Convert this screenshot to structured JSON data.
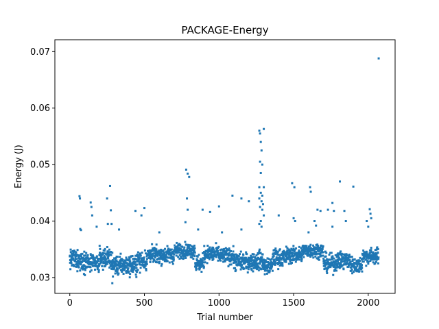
{
  "chart_data": {
    "type": "scatter",
    "title": "PACKAGE-Energy",
    "xlabel": "Trial number",
    "ylabel": "Energy (J)",
    "xlim": [
      -100,
      2180
    ],
    "ylim": [
      0.0272,
      0.0721
    ],
    "xticks": [
      0,
      500,
      1000,
      1500,
      2000
    ],
    "yticks": [
      0.03,
      0.04,
      0.05,
      0.06,
      0.07
    ],
    "xtick_labels": [
      "0",
      "500",
      "1000",
      "1500",
      "2000"
    ],
    "ytick_labels": [
      "0.03",
      "0.04",
      "0.05",
      "0.06",
      "0.07"
    ],
    "grid": false,
    "marker_color": "#1f77b4",
    "n_points": 2070,
    "segments": [
      {
        "x_start": 0,
        "x_end": 60,
        "mean": 0.0332,
        "spread": 0.0012
      },
      {
        "x_start": 60,
        "x_end": 120,
        "mean": 0.033,
        "spread": 0.0013
      },
      {
        "x_start": 120,
        "x_end": 200,
        "mean": 0.0325,
        "spread": 0.0011
      },
      {
        "x_start": 200,
        "x_end": 280,
        "mean": 0.0335,
        "spread": 0.0012
      },
      {
        "x_start": 280,
        "x_end": 450,
        "mean": 0.0322,
        "spread": 0.0012
      },
      {
        "x_start": 450,
        "x_end": 520,
        "mean": 0.033,
        "spread": 0.0012
      },
      {
        "x_start": 520,
        "x_end": 700,
        "mean": 0.034,
        "spread": 0.001
      },
      {
        "x_start": 700,
        "x_end": 840,
        "mean": 0.0348,
        "spread": 0.0009
      },
      {
        "x_start": 840,
        "x_end": 900,
        "mean": 0.0325,
        "spread": 0.0011
      },
      {
        "x_start": 900,
        "x_end": 1000,
        "mean": 0.0342,
        "spread": 0.001
      },
      {
        "x_start": 1000,
        "x_end": 1100,
        "mean": 0.0338,
        "spread": 0.001
      },
      {
        "x_start": 1100,
        "x_end": 1260,
        "mean": 0.0328,
        "spread": 0.0011
      },
      {
        "x_start": 1260,
        "x_end": 1300,
        "mean": 0.033,
        "spread": 0.0012
      },
      {
        "x_start": 1300,
        "x_end": 1360,
        "mean": 0.032,
        "spread": 0.001
      },
      {
        "x_start": 1360,
        "x_end": 1450,
        "mean": 0.0335,
        "spread": 0.0011
      },
      {
        "x_start": 1450,
        "x_end": 1560,
        "mean": 0.034,
        "spread": 0.001
      },
      {
        "x_start": 1560,
        "x_end": 1700,
        "mean": 0.0348,
        "spread": 0.0009
      },
      {
        "x_start": 1700,
        "x_end": 1780,
        "mean": 0.0325,
        "spread": 0.0011
      },
      {
        "x_start": 1780,
        "x_end": 1880,
        "mean": 0.033,
        "spread": 0.0011
      },
      {
        "x_start": 1880,
        "x_end": 1960,
        "mean": 0.0322,
        "spread": 0.001
      },
      {
        "x_start": 1960,
        "x_end": 2070,
        "mean": 0.0338,
        "spread": 0.001
      }
    ],
    "outliers": [
      {
        "x": 65,
        "y": 0.0444
      },
      {
        "x": 68,
        "y": 0.044
      },
      {
        "x": 70,
        "y": 0.0386
      },
      {
        "x": 75,
        "y": 0.0384
      },
      {
        "x": 140,
        "y": 0.0433
      },
      {
        "x": 145,
        "y": 0.0425
      },
      {
        "x": 150,
        "y": 0.041
      },
      {
        "x": 180,
        "y": 0.039
      },
      {
        "x": 250,
        "y": 0.044
      },
      {
        "x": 270,
        "y": 0.0462
      },
      {
        "x": 275,
        "y": 0.0419
      },
      {
        "x": 255,
        "y": 0.0395
      },
      {
        "x": 280,
        "y": 0.0395
      },
      {
        "x": 285,
        "y": 0.029
      },
      {
        "x": 330,
        "y": 0.0385
      },
      {
        "x": 440,
        "y": 0.0418
      },
      {
        "x": 480,
        "y": 0.041
      },
      {
        "x": 500,
        "y": 0.0423
      },
      {
        "x": 600,
        "y": 0.038
      },
      {
        "x": 780,
        "y": 0.0491
      },
      {
        "x": 790,
        "y": 0.0484
      },
      {
        "x": 800,
        "y": 0.0478
      },
      {
        "x": 785,
        "y": 0.044
      },
      {
        "x": 790,
        "y": 0.042
      },
      {
        "x": 775,
        "y": 0.0398
      },
      {
        "x": 860,
        "y": 0.0385
      },
      {
        "x": 890,
        "y": 0.042
      },
      {
        "x": 940,
        "y": 0.0416
      },
      {
        "x": 1000,
        "y": 0.0426
      },
      {
        "x": 1020,
        "y": 0.038
      },
      {
        "x": 1090,
        "y": 0.0445
      },
      {
        "x": 1150,
        "y": 0.044
      },
      {
        "x": 1200,
        "y": 0.0435
      },
      {
        "x": 1150,
        "y": 0.0385
      },
      {
        "x": 1270,
        "y": 0.056
      },
      {
        "x": 1275,
        "y": 0.0555
      },
      {
        "x": 1300,
        "y": 0.0563
      },
      {
        "x": 1280,
        "y": 0.054
      },
      {
        "x": 1285,
        "y": 0.0525
      },
      {
        "x": 1275,
        "y": 0.0505
      },
      {
        "x": 1290,
        "y": 0.05
      },
      {
        "x": 1280,
        "y": 0.0485
      },
      {
        "x": 1270,
        "y": 0.046
      },
      {
        "x": 1300,
        "y": 0.046
      },
      {
        "x": 1280,
        "y": 0.045
      },
      {
        "x": 1290,
        "y": 0.0445
      },
      {
        "x": 1270,
        "y": 0.044
      },
      {
        "x": 1285,
        "y": 0.0435
      },
      {
        "x": 1295,
        "y": 0.043
      },
      {
        "x": 1275,
        "y": 0.0425
      },
      {
        "x": 1290,
        "y": 0.042
      },
      {
        "x": 1300,
        "y": 0.041
      },
      {
        "x": 1280,
        "y": 0.04
      },
      {
        "x": 1270,
        "y": 0.0395
      },
      {
        "x": 1285,
        "y": 0.039
      },
      {
        "x": 1400,
        "y": 0.041
      },
      {
        "x": 1490,
        "y": 0.0467
      },
      {
        "x": 1505,
        "y": 0.046
      },
      {
        "x": 1500,
        "y": 0.0405
      },
      {
        "x": 1510,
        "y": 0.04
      },
      {
        "x": 1610,
        "y": 0.046
      },
      {
        "x": 1615,
        "y": 0.0452
      },
      {
        "x": 1600,
        "y": 0.038
      },
      {
        "x": 1640,
        "y": 0.04
      },
      {
        "x": 1650,
        "y": 0.0392
      },
      {
        "x": 1660,
        "y": 0.042
      },
      {
        "x": 1680,
        "y": 0.0418
      },
      {
        "x": 1730,
        "y": 0.042
      },
      {
        "x": 1760,
        "y": 0.0432
      },
      {
        "x": 1770,
        "y": 0.0418
      },
      {
        "x": 1760,
        "y": 0.039
      },
      {
        "x": 1810,
        "y": 0.047
      },
      {
        "x": 1840,
        "y": 0.0418
      },
      {
        "x": 1850,
        "y": 0.04
      },
      {
        "x": 1900,
        "y": 0.0461
      },
      {
        "x": 1990,
        "y": 0.04
      },
      {
        "x": 2010,
        "y": 0.0421
      },
      {
        "x": 2015,
        "y": 0.0413
      },
      {
        "x": 2020,
        "y": 0.0405
      },
      {
        "x": 2000,
        "y": 0.039
      },
      {
        "x": 2070,
        "y": 0.0688
      }
    ]
  }
}
